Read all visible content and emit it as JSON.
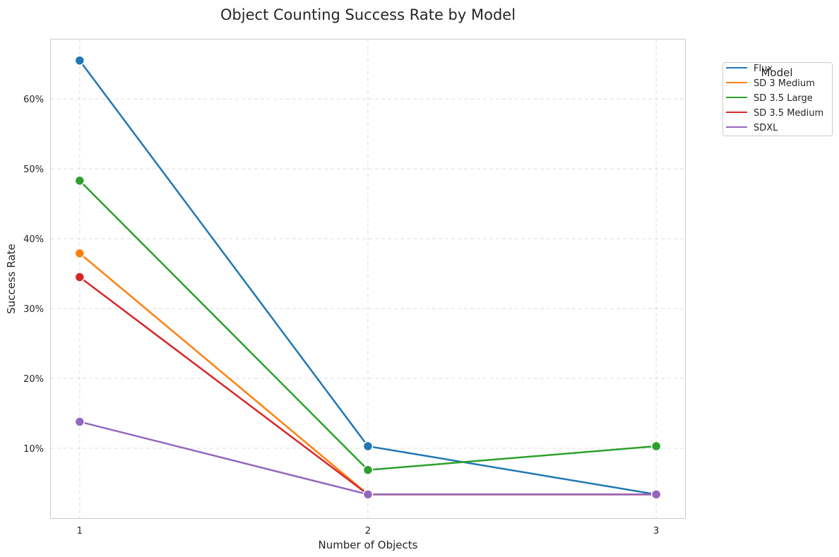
{
  "chart_data": {
    "type": "line",
    "title": "Object Counting Success Rate by Model",
    "xlabel": "Number of Objects",
    "ylabel": "Success Rate",
    "x": [
      1,
      2,
      3
    ],
    "x_tick_labels": [
      "1",
      "2",
      "3"
    ],
    "y_ticks": [
      0.1,
      0.2,
      0.3,
      0.4,
      0.5,
      0.6
    ],
    "y_tick_labels": [
      "10%",
      "20%",
      "30%",
      "40%",
      "50%",
      "60%"
    ],
    "xlim": [
      0.9,
      3.1
    ],
    "ylim": [
      0.0,
      0.685
    ],
    "grid": true,
    "grid_style": "dashed",
    "legend": {
      "title": "Model",
      "placement": "outside-top-right"
    },
    "series": [
      {
        "name": "Flux",
        "color": "#1f77b4",
        "values": [
          0.655,
          0.103,
          0.034
        ]
      },
      {
        "name": "SD 3 Medium",
        "color": "#ff7f0e",
        "values": [
          0.379,
          0.034,
          0.034
        ]
      },
      {
        "name": "SD 3.5 Large",
        "color": "#2ca02c",
        "values": [
          0.483,
          0.069,
          0.103
        ]
      },
      {
        "name": "SD 3.5 Medium",
        "color": "#d62728",
        "values": [
          0.345,
          0.034,
          0.034
        ]
      },
      {
        "name": "SDXL",
        "color": "#9467bd",
        "values": [
          0.138,
          0.034,
          0.034
        ]
      }
    ]
  }
}
